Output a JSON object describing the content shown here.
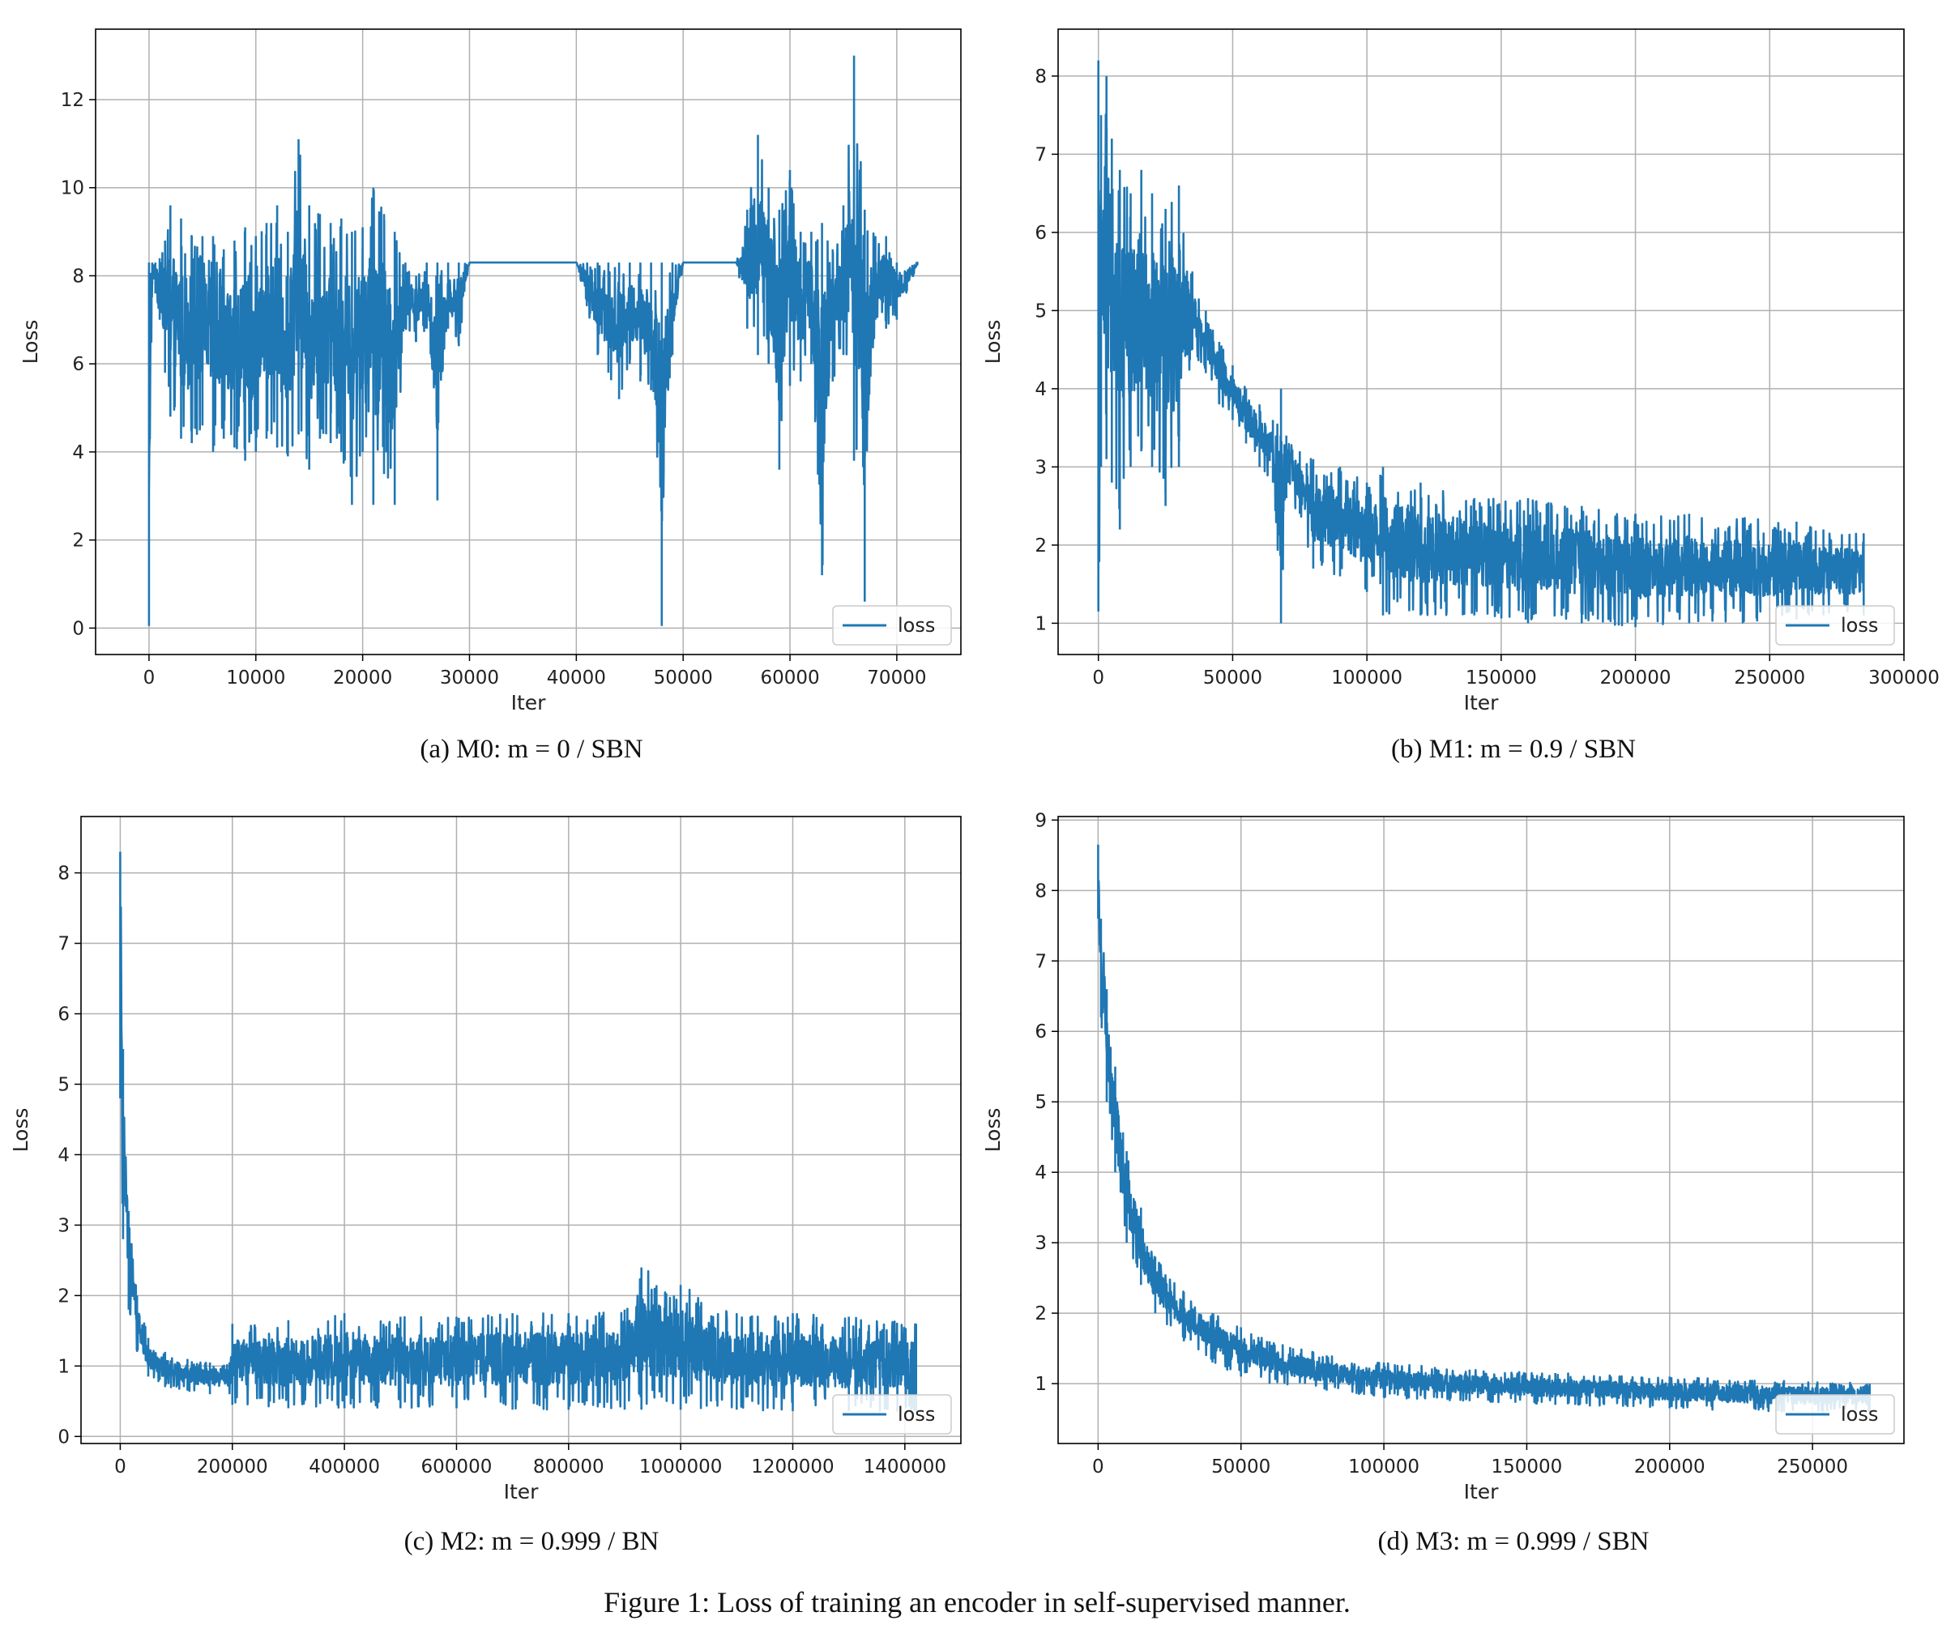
{
  "figure_caption": "Figure 1: Loss of training an encoder in self-supervised manner.",
  "colors": {
    "series": "#1f77b4",
    "grid": "#b0b0b0",
    "axis": "#000000"
  },
  "chart_data": [
    {
      "type": "line",
      "caption": "(a) M0: m = 0 / SBN",
      "xlabel": "Iter",
      "ylabel": "Loss",
      "xlim": [
        -5000,
        76000
      ],
      "ylim": [
        -0.6,
        13.6
      ],
      "xticks": [
        0,
        10000,
        20000,
        30000,
        40000,
        50000,
        60000,
        70000
      ],
      "xtick_labels": [
        "0",
        "10000",
        "20000",
        "30000",
        "40000",
        "50000",
        "60000",
        "70000"
      ],
      "yticks": [
        0,
        2,
        4,
        6,
        8,
        10,
        12
      ],
      "ytick_labels": [
        "0",
        "2",
        "4",
        "6",
        "8",
        "10",
        "12"
      ],
      "grid": true,
      "legend": {
        "label": "loss",
        "position": "lower-right"
      },
      "series": [
        {
          "name": "loss",
          "color": "#1f77b4",
          "x": [
            0,
            300,
            600,
            1000,
            1500,
            2000,
            3000,
            4000,
            5000,
            6000,
            7000,
            8000,
            9000,
            10000,
            11000,
            12000,
            13000,
            14000,
            15000,
            16000,
            17000,
            18000,
            19000,
            20000,
            21000,
            22000,
            23000,
            24000,
            25000,
            26000,
            27000,
            28000,
            29000,
            30000,
            35000,
            40000,
            42000,
            43000,
            44000,
            45000,
            46000,
            47000,
            48000,
            49000,
            50000,
            52000,
            55000,
            56000,
            57000,
            58000,
            59000,
            60000,
            61000,
            62000,
            63000,
            64000,
            65000,
            66000,
            67000,
            68000,
            69000,
            70000,
            72000
          ],
          "lower": [
            0.05,
            7.8,
            7.6,
            7.0,
            5.8,
            4.8,
            4.3,
            4.2,
            4.6,
            4.0,
            4.3,
            4.1,
            3.8,
            4.0,
            4.3,
            4.1,
            3.9,
            4.4,
            3.6,
            4.3,
            4.2,
            4.0,
            2.8,
            4.0,
            2.8,
            3.5,
            2.8,
            6.8,
            6.5,
            6.8,
            2.9,
            6.8,
            6.4,
            8.3,
            8.3,
            8.3,
            6.2,
            5.8,
            5.2,
            6.0,
            5.6,
            5.4,
            0.05,
            6.2,
            8.3,
            8.3,
            8.3,
            6.8,
            6.2,
            6.0,
            3.6,
            5.5,
            5.6,
            6.0,
            1.2,
            5.6,
            6.2,
            3.8,
            0.6,
            7.0,
            6.8,
            7.0,
            8.3
          ],
          "upper": [
            8.3,
            8.3,
            8.3,
            8.4,
            8.8,
            9.6,
            9.3,
            8.9,
            8.9,
            8.9,
            8.6,
            8.8,
            9.1,
            8.9,
            9.2,
            9.6,
            9.0,
            11.1,
            9.6,
            9.4,
            9.2,
            9.3,
            9.0,
            9.1,
            10.0,
            9.4,
            9.0,
            8.3,
            8.0,
            8.3,
            8.3,
            8.3,
            8.3,
            8.3,
            8.3,
            8.3,
            8.3,
            8.3,
            8.3,
            8.3,
            8.3,
            8.3,
            8.3,
            8.3,
            8.3,
            8.3,
            8.3,
            9.5,
            11.2,
            10.0,
            9.5,
            10.4,
            9.0,
            9.0,
            9.2,
            8.6,
            9.6,
            13.0,
            9.5,
            8.9,
            8.9,
            8.3,
            8.3
          ]
        }
      ]
    },
    {
      "type": "line",
      "caption": "(b) M1: m = 0.9 / SBN",
      "xlabel": "Iter",
      "ylabel": "Loss",
      "xlim": [
        -15000,
        300000
      ],
      "ylim": [
        0.6,
        8.6
      ],
      "xticks": [
        0,
        50000,
        100000,
        150000,
        200000,
        250000,
        300000
      ],
      "xtick_labels": [
        "0",
        "50000",
        "100000",
        "150000",
        "200000",
        "250000",
        "300000"
      ],
      "yticks": [
        1,
        2,
        3,
        4,
        5,
        6,
        7,
        8
      ],
      "ytick_labels": [
        "1",
        "2",
        "3",
        "4",
        "5",
        "6",
        "7",
        "8"
      ],
      "grid": true,
      "legend": {
        "label": "loss",
        "position": "lower-right"
      },
      "series": [
        {
          "name": "loss",
          "color": "#1f77b4",
          "x": [
            0,
            1000,
            3000,
            5000,
            8000,
            12000,
            16000,
            20000,
            25000,
            30000,
            35000,
            40000,
            45000,
            50000,
            55000,
            60000,
            65000,
            68000,
            70000,
            75000,
            80000,
            90000,
            100000,
            105000,
            106000,
            120000,
            140000,
            160000,
            180000,
            200000,
            220000,
            240000,
            260000,
            270000,
            285000
          ],
          "lower": [
            1.15,
            3.0,
            3.1,
            2.8,
            2.2,
            3.0,
            3.2,
            3.0,
            2.5,
            3.0,
            4.5,
            4.2,
            3.8,
            3.6,
            3.3,
            3.0,
            2.8,
            1.0,
            2.6,
            2.4,
            1.7,
            1.6,
            1.4,
            1.5,
            1.1,
            1.1,
            1.1,
            1.0,
            1.0,
            0.95,
            1.0,
            1.0,
            1.05,
            1.1,
            1.1
          ],
          "upper": [
            8.2,
            7.5,
            8.0,
            7.2,
            6.8,
            6.5,
            6.8,
            6.5,
            6.3,
            6.6,
            5.5,
            5.0,
            4.6,
            4.3,
            4.0,
            3.8,
            3.6,
            4.0,
            3.4,
            3.2,
            3.1,
            3.0,
            2.8,
            2.9,
            3.0,
            2.8,
            2.6,
            2.6,
            2.5,
            2.4,
            2.4,
            2.35,
            2.3,
            2.2,
            2.15
          ]
        }
      ]
    },
    {
      "type": "line",
      "caption": "(c) M2: m = 0.999 / BN",
      "xlabel": "Iter",
      "ylabel": "Loss",
      "xlim": [
        -70000,
        1500000
      ],
      "ylim": [
        -0.1,
        8.8
      ],
      "xticks": [
        0,
        200000,
        400000,
        600000,
        800000,
        1000000,
        1200000,
        1400000
      ],
      "xtick_labels": [
        "0",
        "200000",
        "400000",
        "600000",
        "800000",
        "1000000",
        "1200000",
        "1400000"
      ],
      "yticks": [
        0,
        1,
        2,
        3,
        4,
        5,
        6,
        7,
        8
      ],
      "ytick_labels": [
        "0",
        "1",
        "2",
        "3",
        "4",
        "5",
        "6",
        "7",
        "8"
      ],
      "grid": true,
      "legend": {
        "label": "loss",
        "position": "lower-right"
      },
      "series": [
        {
          "name": "loss",
          "color": "#1f77b4",
          "x": [
            0,
            5000,
            15000,
            30000,
            50000,
            80000,
            120000,
            160000,
            195000,
            200000,
            300000,
            400000,
            500000,
            600000,
            700000,
            800000,
            900000,
            930000,
            1000000,
            1100000,
            1200000,
            1300000,
            1420000
          ],
          "lower": [
            4.8,
            2.8,
            1.8,
            1.2,
            0.85,
            0.7,
            0.65,
            0.6,
            0.6,
            0.45,
            0.4,
            0.4,
            0.4,
            0.4,
            0.38,
            0.38,
            0.38,
            0.38,
            0.38,
            0.38,
            0.36,
            0.36,
            0.36
          ],
          "upper": [
            8.3,
            5.5,
            3.2,
            2.0,
            1.4,
            1.2,
            1.1,
            1.05,
            1.05,
            1.6,
            1.65,
            1.75,
            1.7,
            1.7,
            1.75,
            1.75,
            1.8,
            2.4,
            2.15,
            1.75,
            1.75,
            1.7,
            1.6
          ]
        }
      ]
    },
    {
      "type": "line",
      "caption": "(d) M3: m = 0.999 / SBN",
      "xlabel": "Iter",
      "ylabel": "Loss",
      "xlim": [
        -14000,
        282000
      ],
      "ylim": [
        0.15,
        9.05
      ],
      "xticks": [
        0,
        50000,
        100000,
        150000,
        200000,
        250000
      ],
      "xtick_labels": [
        "0",
        "50000",
        "100000",
        "150000",
        "200000",
        "250000"
      ],
      "yticks": [
        1,
        2,
        3,
        4,
        5,
        6,
        7,
        8,
        9
      ],
      "ytick_labels": [
        "1",
        "2",
        "3",
        "4",
        "5",
        "6",
        "7",
        "8",
        "9"
      ],
      "grid": true,
      "legend": {
        "label": "loss",
        "position": "lower-right"
      },
      "series": [
        {
          "name": "loss",
          "color": "#1f77b4",
          "x": [
            0,
            1000,
            3000,
            6000,
            10000,
            15000,
            20000,
            30000,
            40000,
            50000,
            60000,
            80000,
            100000,
            130000,
            160000,
            200000,
            240000,
            270000
          ],
          "lower": [
            7.6,
            6.2,
            5.0,
            4.0,
            3.0,
            2.4,
            2.0,
            1.6,
            1.3,
            1.1,
            1.0,
            0.9,
            0.8,
            0.75,
            0.7,
            0.65,
            0.6,
            0.6
          ],
          "upper": [
            8.65,
            7.6,
            6.6,
            5.5,
            4.3,
            3.5,
            2.8,
            2.3,
            2.0,
            1.8,
            1.6,
            1.4,
            1.3,
            1.2,
            1.15,
            1.1,
            1.05,
            1.0
          ]
        }
      ]
    }
  ]
}
